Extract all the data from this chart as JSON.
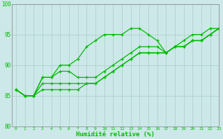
{
  "xlabel": "Humidité relative (%)",
  "background_color": "#cce8e8",
  "grid_color": "#aacccc",
  "line_color": "#00bb00",
  "xlim": [
    -0.5,
    23
  ],
  "ylim": [
    80,
    100
  ],
  "xticks": [
    0,
    1,
    2,
    3,
    4,
    5,
    6,
    7,
    8,
    9,
    10,
    11,
    12,
    13,
    14,
    15,
    16,
    17,
    18,
    19,
    20,
    21,
    22,
    23
  ],
  "yticks": [
    80,
    85,
    90,
    95,
    100
  ],
  "series": [
    [
      86,
      85,
      85,
      88,
      88,
      90,
      90,
      91,
      93,
      94,
      95,
      95,
      95,
      96,
      96,
      95,
      94,
      92,
      93,
      94,
      95,
      95,
      96,
      96
    ],
    [
      86,
      85,
      85,
      88,
      88,
      89,
      89,
      88,
      88,
      88,
      89,
      90,
      91,
      92,
      93,
      93,
      93,
      92,
      93,
      93,
      94,
      94,
      95,
      96
    ],
    [
      86,
      85,
      85,
      87,
      87,
      87,
      87,
      87,
      87,
      87,
      88,
      89,
      90,
      91,
      92,
      92,
      92,
      92,
      93,
      93,
      94,
      94,
      95,
      96
    ],
    [
      86,
      85,
      85,
      86,
      86,
      86,
      86,
      86,
      87,
      87,
      88,
      89,
      90,
      91,
      92,
      92,
      92,
      92,
      93,
      93,
      94,
      94,
      95,
      96
    ]
  ]
}
